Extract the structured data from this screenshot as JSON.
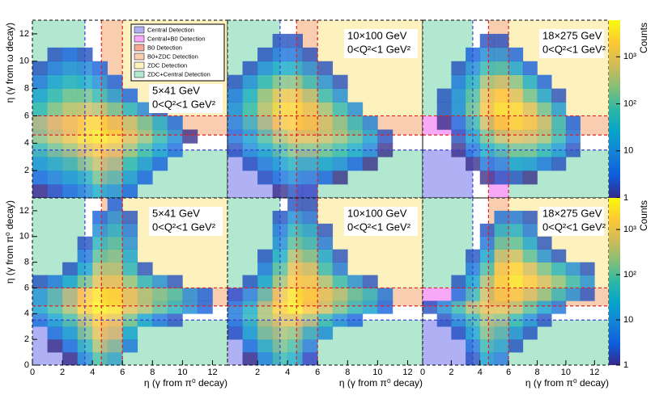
{
  "regions": [
    {
      "name": "Central Detection",
      "color": "#b0b0f4",
      "boxes": [
        [
          0,
          3.5,
          0,
          3.5
        ]
      ]
    },
    {
      "name": "Central+B0 Detection",
      "color": "#f7a8f7",
      "boxes": [
        [
          4.6,
          6,
          0,
          3.5
        ],
        [
          0,
          3.5,
          4.6,
          6
        ]
      ]
    },
    {
      "name": "B0 Detection",
      "color": "#f4a898",
      "boxes": [
        [
          4.6,
          6,
          4.6,
          6
        ]
      ]
    },
    {
      "name": "B0+ZDC Detection",
      "color": "#f9cdb0",
      "boxes": [
        [
          4.6,
          6,
          6,
          13
        ],
        [
          6,
          13,
          4.6,
          6
        ]
      ]
    },
    {
      "name": "ZDC Detection",
      "color": "#fdf1bd",
      "boxes": [
        [
          6,
          13,
          6,
          13
        ]
      ]
    },
    {
      "name": "ZDC+Central Detection",
      "color": "#b2e8d0",
      "boxes": [
        [
          0,
          3.5,
          6,
          13
        ],
        [
          6,
          13,
          0,
          3.5
        ]
      ]
    }
  ],
  "boundaries": [
    {
      "value": 3.5,
      "color": "#3c3cd8"
    },
    {
      "value": 4.6,
      "color": "#e02020"
    },
    {
      "value": 6,
      "color": "#e02020"
    }
  ],
  "colorbars": [
    {
      "zlim": [
        1,
        6000
      ],
      "zticks": [
        1,
        10,
        {
          "value": 100,
          "label": "10²"
        },
        {
          "value": 1000,
          "label": "10³"
        }
      ],
      "label": "Counts"
    },
    {
      "zlim": [
        1,
        5000
      ],
      "zticks": [
        1,
        10,
        {
          "value": 100,
          "label": "10²"
        },
        {
          "value": 1000,
          "label": "10³"
        }
      ],
      "label": "Counts"
    }
  ],
  "chart_data": [
    {
      "type": "heatmap",
      "colorbar": 0,
      "annotation": [
        "5×41 GeV",
        "0<Q²<1 GeV²"
      ],
      "ylabel": "η (γ from ω decay)",
      "xlim": [
        0,
        13
      ],
      "ylim": [
        0,
        13
      ],
      "yticks": [
        2,
        4,
        6,
        8,
        10,
        12
      ],
      "legend": "upper right",
      "z": [
        [
          1,
          2,
          5,
          10,
          30,
          20,
          3,
          0,
          0,
          0,
          0,
          0,
          0
        ],
        [
          5,
          10,
          20,
          40,
          150,
          100,
          15,
          3,
          0,
          0,
          0,
          0,
          0
        ],
        [
          20,
          40,
          80,
          200,
          500,
          300,
          60,
          15,
          3,
          0,
          0,
          0,
          0
        ],
        [
          60,
          150,
          300,
          800,
          1500,
          1000,
          300,
          80,
          20,
          4,
          0,
          0,
          0
        ],
        [
          200,
          500,
          1200,
          3000,
          4000,
          2500,
          800,
          250,
          60,
          10,
          1,
          0,
          0
        ],
        [
          300,
          800,
          1500,
          2500,
          2500,
          1200,
          500,
          150,
          30,
          4,
          0,
          0,
          0
        ],
        [
          60,
          200,
          500,
          600,
          400,
          150,
          40,
          8,
          2,
          0,
          0,
          0,
          0
        ],
        [
          20,
          60,
          150,
          150,
          60,
          15,
          3,
          0,
          0,
          0,
          0,
          0,
          0
        ],
        [
          5,
          20,
          40,
          30,
          10,
          3,
          0,
          0,
          0,
          0,
          0,
          0,
          0
        ],
        [
          2,
          5,
          10,
          8,
          3,
          0,
          0,
          0,
          0,
          0,
          0,
          0,
          0
        ],
        [
          0,
          2,
          3,
          2,
          0,
          0,
          0,
          0,
          0,
          0,
          0,
          0,
          0
        ],
        [
          0,
          0,
          0,
          0,
          0,
          0,
          0,
          0,
          0,
          0,
          0,
          0,
          0
        ],
        [
          0,
          0,
          0,
          0,
          0,
          0,
          0,
          0,
          0,
          0,
          0,
          0,
          0
        ]
      ]
    },
    {
      "type": "heatmap",
      "colorbar": 0,
      "annotation": [
        "10×100 GeV",
        "0<Q²<1 GeV²"
      ],
      "xlim": [
        0,
        13
      ],
      "ylim": [
        0,
        13
      ],
      "z": [
        [
          0,
          0,
          0,
          1,
          2,
          2,
          0,
          0,
          0,
          0,
          0,
          0,
          0
        ],
        [
          0,
          0,
          2,
          5,
          10,
          8,
          3,
          1,
          0,
          0,
          0,
          0,
          0
        ],
        [
          0,
          2,
          8,
          20,
          40,
          40,
          20,
          10,
          3,
          1,
          0,
          0,
          0
        ],
        [
          2,
          10,
          30,
          100,
          200,
          200,
          150,
          80,
          30,
          8,
          1,
          0,
          0
        ],
        [
          5,
          20,
          100,
          400,
          800,
          800,
          500,
          250,
          100,
          20,
          2,
          0,
          0
        ],
        [
          10,
          60,
          300,
          1500,
          2000,
          1500,
          600,
          200,
          50,
          8,
          0,
          0,
          0
        ],
        [
          10,
          80,
          500,
          2500,
          2500,
          1200,
          300,
          60,
          10,
          0,
          0,
          0,
          0
        ],
        [
          5,
          40,
          300,
          1200,
          1200,
          400,
          60,
          10,
          0,
          0,
          0,
          0,
          0
        ],
        [
          2,
          10,
          60,
          200,
          200,
          60,
          10,
          2,
          0,
          0,
          0,
          0,
          0
        ],
        [
          0,
          2,
          10,
          30,
          30,
          10,
          2,
          0,
          0,
          0,
          0,
          0,
          0
        ],
        [
          0,
          0,
          2,
          5,
          5,
          2,
          0,
          0,
          0,
          0,
          0,
          0,
          0
        ],
        [
          0,
          0,
          0,
          2,
          2,
          0,
          0,
          0,
          0,
          0,
          0,
          0,
          0
        ],
        [
          0,
          0,
          0,
          0,
          0,
          0,
          0,
          0,
          0,
          0,
          0,
          0,
          0
        ]
      ]
    },
    {
      "type": "heatmap",
      "colorbar": 0,
      "annotation": [
        "18×275 GeV",
        "0<Q²<1 GeV²"
      ],
      "xlim": [
        0,
        13
      ],
      "ylim": [
        0,
        13
      ],
      "z": [
        [
          0,
          0,
          0,
          0,
          0,
          0,
          0,
          0,
          0,
          0,
          0,
          0,
          0
        ],
        [
          0,
          0,
          0,
          0,
          1,
          2,
          2,
          1,
          0,
          0,
          0,
          0,
          0
        ],
        [
          0,
          0,
          0,
          1,
          5,
          10,
          20,
          15,
          5,
          2,
          0,
          0,
          0
        ],
        [
          0,
          0,
          1,
          5,
          30,
          80,
          150,
          150,
          60,
          15,
          2,
          0,
          0
        ],
        [
          0,
          0,
          2,
          20,
          150,
          500,
          800,
          600,
          300,
          60,
          5,
          0,
          0
        ],
        [
          0,
          1,
          5,
          60,
          600,
          2000,
          2500,
          1500,
          500,
          60,
          3,
          0,
          0
        ],
        [
          0,
          2,
          10,
          150,
          1500,
          3500,
          2500,
          800,
          150,
          15,
          0,
          0,
          0
        ],
        [
          0,
          2,
          10,
          100,
          1000,
          2000,
          800,
          150,
          20,
          2,
          0,
          0,
          0
        ],
        [
          0,
          0,
          5,
          40,
          300,
          500,
          200,
          30,
          3,
          0,
          0,
          0,
          0
        ],
        [
          0,
          0,
          2,
          10,
          60,
          80,
          20,
          3,
          0,
          0,
          0,
          0,
          0
        ],
        [
          0,
          0,
          0,
          3,
          10,
          10,
          3,
          0,
          0,
          0,
          0,
          0,
          0
        ],
        [
          0,
          0,
          0,
          0,
          2,
          2,
          0,
          0,
          0,
          0,
          0,
          0,
          0
        ],
        [
          0,
          0,
          0,
          0,
          0,
          0,
          0,
          0,
          0,
          0,
          0,
          0,
          0
        ]
      ]
    },
    {
      "type": "heatmap",
      "colorbar": 1,
      "annotation": [
        "5×41 GeV",
        "0<Q²<1 GeV²"
      ],
      "ylabel": "η (γ from π⁰ decay)",
      "xlabel": "η (γ from π⁰ decay)",
      "xlim": [
        0,
        13
      ],
      "ylim": [
        0,
        13
      ],
      "xticks": [
        0,
        2,
        4,
        6,
        8,
        10,
        12
      ],
      "yticks": [
        0,
        2,
        4,
        6,
        8,
        10,
        12
      ],
      "z": [
        [
          0,
          0,
          1,
          10,
          80,
          40,
          0,
          0,
          0,
          0,
          0,
          0,
          0
        ],
        [
          0,
          1,
          5,
          40,
          300,
          150,
          5,
          0,
          0,
          0,
          0,
          0,
          0
        ],
        [
          0,
          5,
          20,
          150,
          800,
          500,
          20,
          0,
          0,
          0,
          0,
          0,
          0
        ],
        [
          5,
          20,
          80,
          400,
          1500,
          1000,
          150,
          20,
          5,
          2,
          0,
          0,
          0
        ],
        [
          20,
          80,
          300,
          2000,
          4000,
          3000,
          800,
          300,
          100,
          40,
          10,
          3,
          0
        ],
        [
          20,
          80,
          300,
          1500,
          3000,
          2500,
          800,
          300,
          150,
          80,
          10,
          3,
          0
        ],
        [
          2,
          5,
          20,
          150,
          800,
          800,
          200,
          40,
          10,
          2,
          0,
          0,
          0
        ],
        [
          0,
          0,
          2,
          20,
          300,
          300,
          40,
          2,
          0,
          0,
          0,
          0,
          0
        ],
        [
          0,
          0,
          0,
          5,
          100,
          150,
          20,
          0,
          0,
          0,
          0,
          0,
          0
        ],
        [
          0,
          0,
          0,
          2,
          40,
          80,
          10,
          0,
          0,
          0,
          0,
          0,
          0
        ],
        [
          0,
          0,
          0,
          0,
          10,
          30,
          5,
          0,
          0,
          0,
          0,
          0,
          0
        ],
        [
          0,
          0,
          0,
          0,
          3,
          10,
          2,
          0,
          0,
          0,
          0,
          0,
          0
        ],
        [
          0,
          0,
          0,
          0,
          0,
          3,
          0,
          0,
          0,
          0,
          0,
          0,
          0
        ]
      ]
    },
    {
      "type": "heatmap",
      "colorbar": 1,
      "annotation": [
        "10×100 GeV",
        "0<Q²<1 GeV²"
      ],
      "xlabel": "η (γ from π⁰ decay)",
      "xlim": [
        0,
        13
      ],
      "ylim": [
        0,
        13
      ],
      "xticks": [
        2,
        4,
        6,
        8,
        10,
        12
      ],
      "z": [
        [
          0,
          1,
          10,
          60,
          30,
          2,
          0,
          0,
          0,
          0,
          0,
          0,
          0
        ],
        [
          0,
          5,
          40,
          150,
          80,
          10,
          0,
          0,
          0,
          0,
          0,
          0,
          0
        ],
        [
          2,
          20,
          150,
          300,
          200,
          50,
          10,
          0,
          0,
          0,
          0,
          0,
          0
        ],
        [
          5,
          40,
          300,
          800,
          800,
          300,
          60,
          10,
          3,
          0,
          0,
          0,
          0
        ],
        [
          5,
          30,
          300,
          2000,
          3500,
          1500,
          500,
          150,
          50,
          20,
          3,
          0,
          0
        ],
        [
          2,
          10,
          100,
          1200,
          3000,
          2000,
          800,
          300,
          100,
          40,
          5,
          0,
          0
        ],
        [
          0,
          2,
          20,
          300,
          1500,
          1200,
          300,
          60,
          10,
          2,
          0,
          0,
          0
        ],
        [
          0,
          0,
          5,
          100,
          800,
          500,
          60,
          5,
          0,
          0,
          0,
          0,
          0
        ],
        [
          0,
          0,
          2,
          30,
          300,
          150,
          20,
          2,
          0,
          0,
          0,
          0,
          0
        ],
        [
          0,
          0,
          0,
          10,
          100,
          50,
          5,
          0,
          0,
          0,
          0,
          0,
          0
        ],
        [
          0,
          0,
          0,
          5,
          40,
          20,
          2,
          0,
          0,
          0,
          0,
          0,
          0
        ],
        [
          0,
          0,
          0,
          2,
          10,
          5,
          0,
          0,
          0,
          0,
          0,
          0,
          0
        ],
        [
          0,
          0,
          0,
          0,
          2,
          2,
          0,
          0,
          0,
          0,
          0,
          0,
          0
        ]
      ]
    },
    {
      "type": "heatmap",
      "colorbar": 1,
      "annotation": [
        "18×275 GeV",
        "0<Q²<1 GeV²"
      ],
      "xlabel": "η (γ from π⁰ decay)",
      "xlim": [
        0,
        13
      ],
      "ylim": [
        0,
        13
      ],
      "xticks": [
        0,
        2,
        4,
        6,
        8,
        10,
        12
      ],
      "z": [
        [
          0,
          0,
          0,
          2,
          20,
          10,
          0,
          0,
          0,
          0,
          0,
          0,
          0
        ],
        [
          0,
          0,
          0,
          5,
          60,
          30,
          2,
          0,
          0,
          0,
          0,
          0,
          0
        ],
        [
          0,
          0,
          2,
          20,
          150,
          80,
          10,
          2,
          0,
          0,
          0,
          0,
          0
        ],
        [
          0,
          2,
          10,
          60,
          300,
          200,
          60,
          10,
          2,
          0,
          0,
          0,
          0
        ],
        [
          2,
          10,
          60,
          300,
          800,
          800,
          400,
          100,
          20,
          5,
          0,
          0,
          0
        ],
        [
          0,
          0,
          5,
          60,
          500,
          1500,
          1500,
          600,
          200,
          50,
          10,
          2,
          0
        ],
        [
          0,
          0,
          2,
          20,
          300,
          2000,
          3000,
          1500,
          600,
          200,
          60,
          10,
          0
        ],
        [
          0,
          0,
          0,
          5,
          80,
          1200,
          2000,
          600,
          150,
          40,
          10,
          2,
          0
        ],
        [
          0,
          0,
          0,
          2,
          20,
          400,
          500,
          100,
          10,
          2,
          0,
          0,
          0
        ],
        [
          0,
          0,
          0,
          0,
          5,
          100,
          100,
          20,
          2,
          0,
          0,
          0,
          0
        ],
        [
          0,
          0,
          0,
          0,
          2,
          30,
          30,
          5,
          0,
          0,
          0,
          0,
          0
        ],
        [
          0,
          0,
          0,
          0,
          0,
          5,
          5,
          2,
          0,
          0,
          0,
          0,
          0
        ],
        [
          0,
          0,
          0,
          0,
          0,
          0,
          0,
          0,
          0,
          0,
          0,
          0,
          0
        ]
      ]
    }
  ]
}
